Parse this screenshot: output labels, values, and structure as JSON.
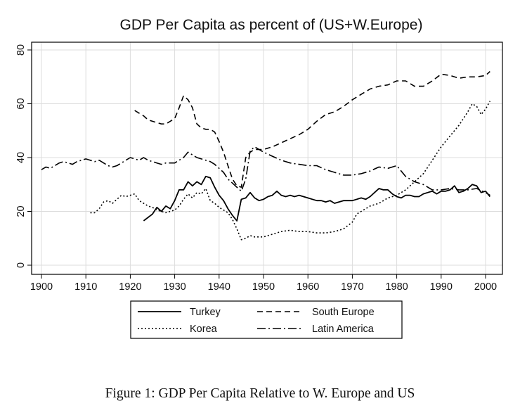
{
  "chart_data": {
    "type": "line",
    "title": "GDP Per Capita as percent of (US+W.Europe)",
    "xlim": [
      1900,
      2001
    ],
    "ylim": [
      0,
      80
    ],
    "x_ticks": [
      1900,
      1910,
      1920,
      1930,
      1940,
      1950,
      1960,
      1970,
      1980,
      1990,
      2000
    ],
    "y_ticks": [
      0,
      20,
      40,
      60,
      80
    ],
    "grid": true,
    "legend_position": "bottom",
    "series": [
      {
        "name": "Turkey",
        "style": "solid",
        "color": "#000000",
        "x": [
          1923,
          1925,
          1926,
          1927,
          1928,
          1929,
          1930,
          1931,
          1932,
          1933,
          1934,
          1935,
          1936,
          1937,
          1938,
          1939,
          1940,
          1941,
          1942,
          1943,
          1944,
          1945,
          1946,
          1947,
          1948,
          1949,
          1950,
          1951,
          1952,
          1953,
          1954,
          1955,
          1956,
          1957,
          1958,
          1959,
          1960,
          1961,
          1962,
          1963,
          1964,
          1965,
          1966,
          1967,
          1968,
          1969,
          1970,
          1971,
          1972,
          1973,
          1974,
          1975,
          1976,
          1977,
          1978,
          1979,
          1980,
          1981,
          1982,
          1983,
          1984,
          1985,
          1986,
          1987,
          1988,
          1989,
          1990,
          1991,
          1992,
          1993,
          1994,
          1995,
          1996,
          1997,
          1998,
          1999,
          2000,
          2001
        ],
        "values": [
          16.5,
          19,
          21.5,
          20,
          22,
          21,
          24,
          28,
          28,
          31,
          29.5,
          31,
          30,
          33,
          32.5,
          29,
          26,
          24,
          21,
          18.5,
          16.5,
          24.5,
          25,
          27,
          25,
          24,
          24.5,
          25.5,
          26,
          27.5,
          26,
          25.5,
          26,
          25.5,
          26,
          25.5,
          25,
          24.5,
          24,
          24,
          23.5,
          24,
          23,
          23.5,
          24,
          24,
          24,
          24.5,
          25,
          24.5,
          25.5,
          27,
          28.5,
          28,
          28,
          26.5,
          25.5,
          25,
          26,
          26,
          25.5,
          25.5,
          26.5,
          27,
          27.5,
          26.5,
          27.5,
          27.5,
          28,
          29.5,
          27,
          27.5,
          28.5,
          30,
          29.5,
          27,
          27.5,
          25.5
        ]
      },
      {
        "name": "South Europe",
        "style": "dashed",
        "color": "#000000",
        "x": [
          1921,
          1922,
          1923,
          1924,
          1925,
          1926,
          1927,
          1928,
          1929,
          1930,
          1931,
          1932,
          1933,
          1934,
          1935,
          1936,
          1937,
          1938,
          1939,
          1940,
          1941,
          1942,
          1943,
          1944,
          1945,
          1946,
          1947,
          1948,
          1949,
          1950,
          1952,
          1954,
          1956,
          1958,
          1960,
          1962,
          1964,
          1966,
          1968,
          1970,
          1972,
          1974,
          1976,
          1978,
          1980,
          1982,
          1984,
          1986,
          1988,
          1990,
          1992,
          1994,
          1996,
          1998,
          2000,
          2001
        ],
        "values": [
          57.5,
          56.5,
          55.5,
          54,
          53.5,
          53,
          52.5,
          52.5,
          53.5,
          54.5,
          58.5,
          63,
          61.5,
          58.5,
          52.5,
          51,
          50.5,
          50.5,
          49.5,
          46,
          42,
          37,
          32,
          29.5,
          29,
          40,
          42,
          43,
          43,
          43,
          44,
          45.5,
          47,
          48.5,
          50.5,
          53.5,
          56,
          57,
          59,
          61.5,
          63.5,
          65.5,
          66.5,
          67,
          68.5,
          68.5,
          66.5,
          66.5,
          68.5,
          71,
          70.5,
          69.5,
          70,
          70,
          70.5,
          72
        ]
      },
      {
        "name": "Korea",
        "style": "dotted",
        "color": "#000000",
        "x": [
          1911,
          1912,
          1913,
          1914,
          1915,
          1916,
          1917,
          1918,
          1919,
          1920,
          1921,
          1922,
          1923,
          1924,
          1925,
          1926,
          1927,
          1928,
          1929,
          1930,
          1931,
          1932,
          1933,
          1934,
          1935,
          1936,
          1937,
          1938,
          1939,
          1940,
          1941,
          1942,
          1943,
          1944,
          1945,
          1946,
          1947,
          1948,
          1949,
          1950,
          1952,
          1954,
          1956,
          1958,
          1960,
          1962,
          1964,
          1966,
          1968,
          1970,
          1971,
          1972,
          1973,
          1974,
          1976,
          1978,
          1980,
          1982,
          1984,
          1986,
          1988,
          1990,
          1992,
          1994,
          1996,
          1997,
          1998,
          1999,
          2000,
          2001
        ],
        "values": [
          19.5,
          19.5,
          21,
          23.5,
          24,
          23,
          24.5,
          26,
          25.5,
          26,
          26.5,
          24,
          23,
          22,
          21.5,
          20.5,
          20,
          19.5,
          20,
          20.5,
          22,
          24.5,
          26.5,
          25,
          27,
          26.5,
          28.5,
          24,
          23,
          21.5,
          20.5,
          19.5,
          17,
          13.5,
          9.5,
          10,
          11,
          10.5,
          10.5,
          10.5,
          11.5,
          12.5,
          13,
          12.5,
          12.5,
          12,
          12,
          12.5,
          13.5,
          16,
          19,
          20,
          21,
          22,
          23,
          25,
          26,
          28,
          31,
          34,
          39,
          44,
          48,
          52,
          57,
          60,
          59,
          56,
          58,
          61
        ]
      },
      {
        "name": "Latin America",
        "style": "dashdot",
        "color": "#000000",
        "x": [
          1900,
          1901,
          1902,
          1903,
          1904,
          1905,
          1906,
          1907,
          1908,
          1909,
          1910,
          1911,
          1912,
          1913,
          1914,
          1915,
          1916,
          1917,
          1918,
          1919,
          1920,
          1921,
          1922,
          1923,
          1924,
          1925,
          1926,
          1927,
          1928,
          1929,
          1930,
          1931,
          1932,
          1933,
          1934,
          1935,
          1936,
          1937,
          1938,
          1939,
          1940,
          1941,
          1942,
          1943,
          1944,
          1945,
          1946,
          1947,
          1948,
          1950,
          1952,
          1954,
          1956,
          1958,
          1960,
          1962,
          1964,
          1966,
          1968,
          1970,
          1972,
          1974,
          1976,
          1978,
          1980,
          1982,
          1984,
          1986,
          1988,
          1990,
          1992,
          1994,
          1996,
          1998,
          2000,
          2001
        ],
        "values": [
          35.5,
          36.5,
          36,
          37,
          38,
          38.5,
          38,
          37.5,
          38.5,
          39,
          39.5,
          39,
          38.5,
          39,
          38,
          37,
          36.5,
          37,
          38,
          39,
          40,
          39.5,
          39,
          40,
          39,
          38.5,
          38,
          37.5,
          38,
          38,
          38,
          39,
          40,
          42,
          41,
          40,
          39.5,
          39,
          38.5,
          37.5,
          36,
          34.5,
          32,
          30.5,
          29,
          27.5,
          32,
          42.5,
          44,
          42,
          40.5,
          39,
          38,
          37.5,
          37,
          37,
          35.5,
          34.5,
          33.5,
          33.5,
          34,
          35,
          36.5,
          36,
          37,
          33,
          31,
          30,
          28,
          28,
          28.5,
          28,
          28,
          28.5,
          27,
          26
        ]
      }
    ]
  },
  "figure_caption": "Figure 1: GDP Per Capita Relative to W. Europe and US"
}
